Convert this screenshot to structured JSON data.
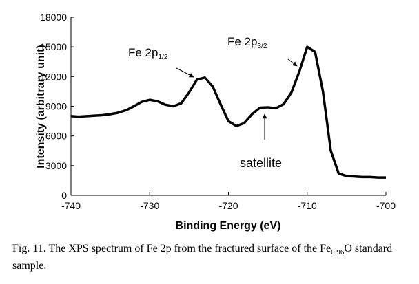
{
  "chart_data": {
    "type": "line",
    "x_label": "Binding Energy (eV)",
    "y_label": "Intensity (arbitrary unit)",
    "x": [
      -740,
      -739,
      -738,
      -737,
      -736,
      -735,
      -734,
      -733,
      -732,
      -731,
      -730,
      -729,
      -728,
      -727,
      -726,
      -725,
      -724,
      -723,
      -722,
      -721,
      -720,
      -719,
      -718,
      -717,
      -716,
      -715,
      -714,
      -713,
      -712,
      -711,
      -710,
      -709,
      -708,
      -707,
      -706,
      -705,
      -704,
      -703,
      -702,
      -701,
      -700
    ],
    "series": [
      {
        "name": "Fe 2p",
        "color": "#000000",
        "values": [
          8000,
          7950,
          8000,
          8050,
          8100,
          8200,
          8350,
          8600,
          9000,
          9450,
          9650,
          9500,
          9150,
          9000,
          9300,
          10400,
          11700,
          11900,
          11000,
          9200,
          7500,
          7000,
          7300,
          8200,
          8850,
          8900,
          8800,
          9200,
          10400,
          12500,
          15000,
          14500,
          10500,
          4500,
          2200,
          1950,
          1900,
          1850,
          1850,
          1800,
          1800
        ]
      }
    ],
    "xlim": [
      -740,
      -700
    ],
    "xticks": [
      -740,
      -730,
      -720,
      -710,
      -700
    ],
    "ylim": [
      0,
      18000
    ],
    "yticks": [
      0,
      3000,
      6000,
      9000,
      12000,
      15000,
      18000
    ],
    "grid": false,
    "annotations": [
      {
        "text": "Fe 2p",
        "sub": "1/2"
      },
      {
        "text": "Fe 2p",
        "sub": "3/2"
      },
      {
        "text": "satellite"
      }
    ]
  },
  "caption": {
    "parts": [
      "Fig. 11.  The XPS spectrum of Fe 2p from the fractured surface of the Fe",
      "0.96",
      "O standard sample."
    ]
  }
}
